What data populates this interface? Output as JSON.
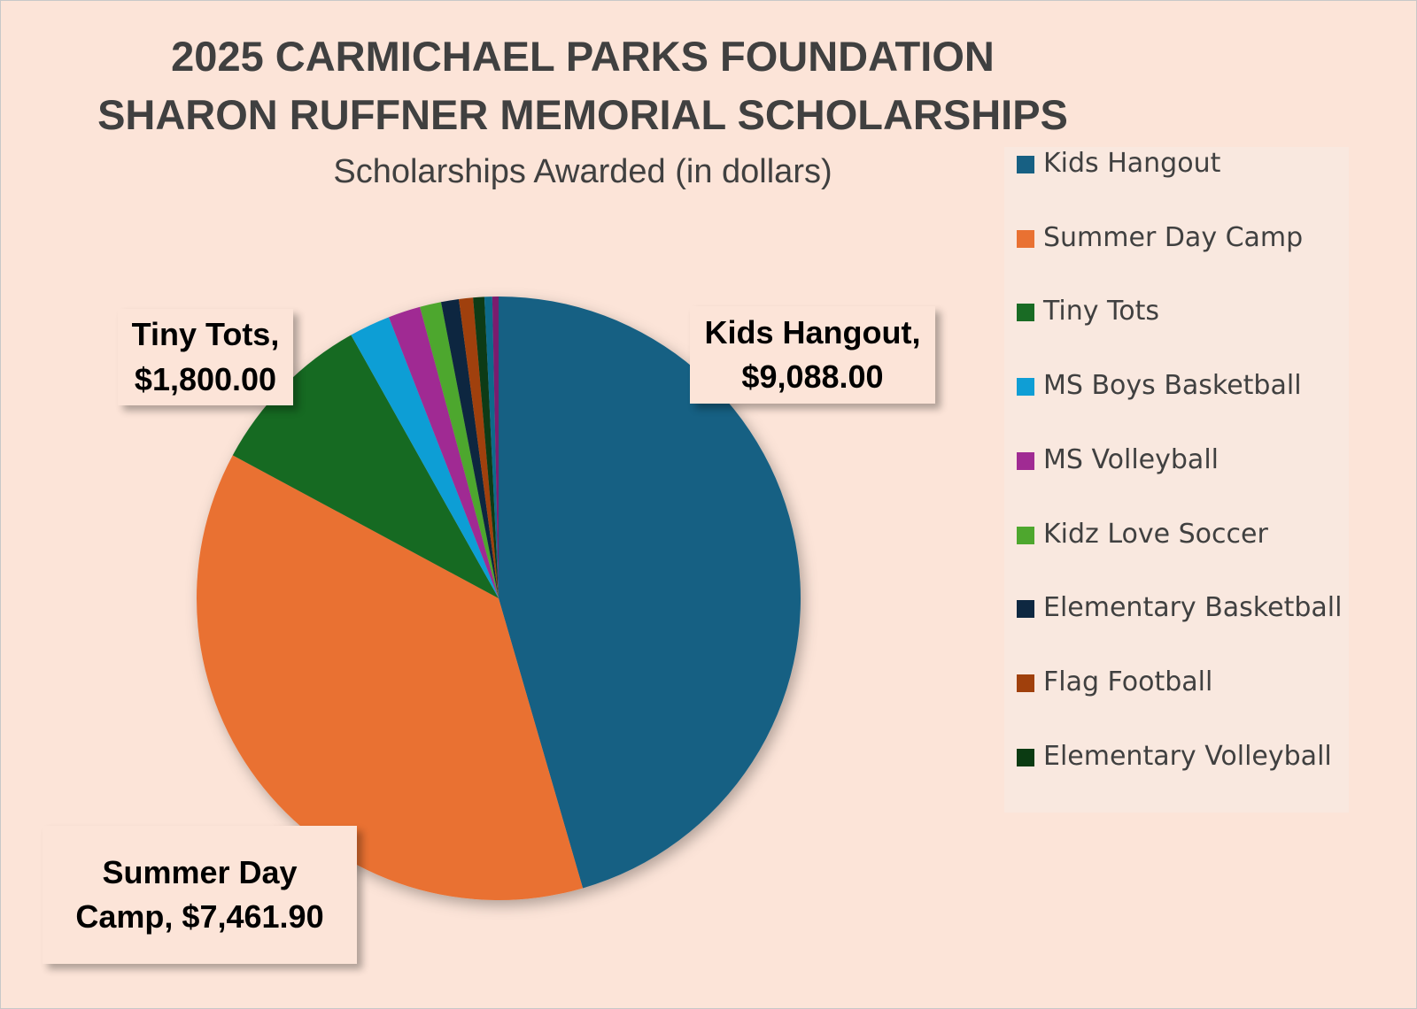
{
  "chart_data": {
    "type": "pie",
    "title": [
      "2025 CARMICHAEL PARKS FOUNDATION",
      "SHARON RUFFNER MEMORIAL SCHOLARSHIPS"
    ],
    "subtitle": "Scholarships Awarded (in dollars)",
    "categories": [
      "Kids Hangout",
      "Summer Day Camp",
      "Tiny Tots",
      "MS Boys Basketball",
      "MS Volleyball",
      "Kidz Love Soccer",
      "Elementary Basketball",
      "Flag Football",
      "Elementary Volleyball",
      null,
      null
    ],
    "values": [
      9088,
      7461.9,
      1800,
      440,
      345,
      228,
      190,
      150,
      120,
      83,
      67
    ],
    "value_labels": [
      "Kids Hangout, $9,088.00",
      "Summer Day Camp,  $7,461.90",
      "Tiny Tots, $1,800.00",
      null,
      null,
      null,
      null,
      null,
      null,
      null,
      null
    ],
    "colors": [
      "#176083",
      "#e97132",
      "#196b24",
      "#0f9ed5",
      "#a02b93",
      "#4ea72e",
      "#0e2841",
      "#a0400c",
      "#0b3b12",
      "#0a6a8a",
      "#7a1f6e"
    ],
    "legend": "right"
  }
}
